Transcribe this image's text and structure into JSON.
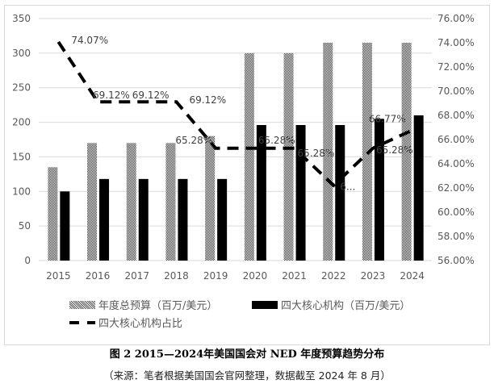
{
  "chart_data": {
    "type": "bar",
    "title": "图 2  2015—2024年美国国会对 NED 年度预算趋势分布",
    "categories": [
      "2015",
      "2016",
      "2017",
      "2018",
      "2019",
      "2020",
      "2021",
      "2022",
      "2023",
      "2024"
    ],
    "series": [
      {
        "name": "年度总预算（百万/美元）",
        "type": "bar",
        "axis": "left",
        "values": [
          135,
          170,
          170,
          170,
          180,
          300,
          300,
          315,
          315,
          315
        ],
        "color": "#808080",
        "pattern": "checker"
      },
      {
        "name": "四大核心机构（百万/美元）",
        "type": "bar",
        "axis": "left",
        "values": [
          100,
          118,
          118,
          118,
          118,
          196,
          196,
          196,
          205,
          210
        ],
        "color": "#000000"
      },
      {
        "name": "四大核心机构占比",
        "type": "line",
        "axis": "right",
        "dashed": true,
        "values": [
          74.07,
          69.12,
          69.12,
          69.12,
          65.28,
          65.28,
          65.28,
          62.22,
          65.28,
          66.77
        ],
        "labels": [
          "74.07%",
          "69.12%",
          "69.12%",
          "69.12%",
          "65.28%",
          "65.28%",
          "65.28%",
          "6...",
          "65.28%",
          "66.77%"
        ],
        "color": "#000000"
      }
    ],
    "left_axis": {
      "range": [
        0,
        350
      ],
      "ticks": [
        "0",
        "50",
        "100",
        "150",
        "200",
        "250",
        "300",
        "350"
      ]
    },
    "right_axis": {
      "range": [
        56,
        76
      ],
      "ticks": [
        "56.00%",
        "58.00%",
        "60.00%",
        "62.00%",
        "64.00%",
        "66.00%",
        "68.00%",
        "70.00%",
        "72.00%",
        "74.00%",
        "76.00%"
      ]
    },
    "grid": true,
    "legend_placement": "bottom"
  },
  "caption": "图 2  2015—2024年美国国会对 NED 年度预算趋势分布",
  "source": "（来源：笔者根据美国国会官网整理，数据截至 2024 年 8 月）"
}
